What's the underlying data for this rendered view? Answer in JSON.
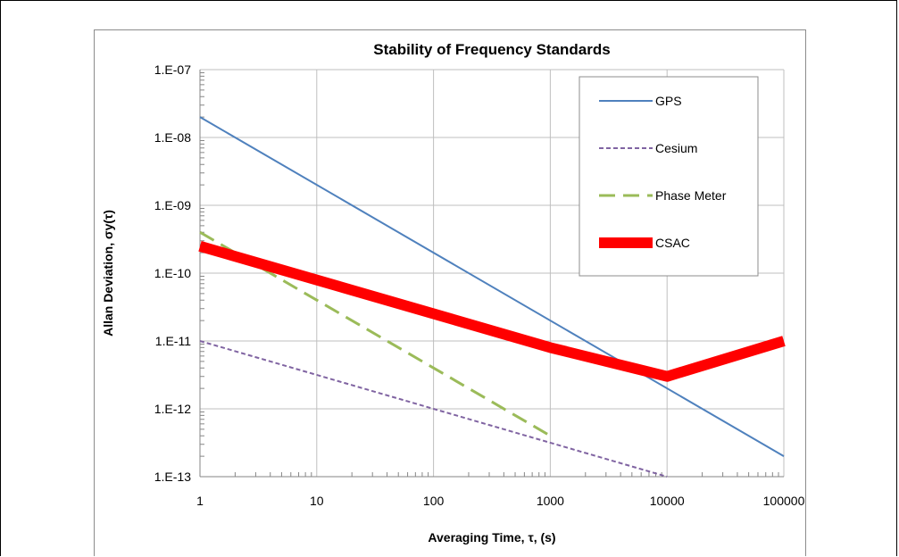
{
  "chart_data": {
    "type": "line",
    "title": "Stability of Frequency Standards",
    "xlabel": "Averaging Time, τ, (s)",
    "ylabel": "Allan Deviation, σy(τ)",
    "xscale": "log",
    "yscale": "log",
    "xlim": [
      1,
      100000
    ],
    "ylim": [
      1e-13,
      1e-07
    ],
    "x_ticks": [
      "1",
      "10",
      "100",
      "1000",
      "10000",
      "100000"
    ],
    "y_ticks": [
      "1.E-13",
      "1.E-12",
      "1.E-11",
      "1.E-10",
      "1.E-09",
      "1.E-08",
      "1.E-07"
    ],
    "grid": true,
    "legend_position": "top-right",
    "series": [
      {
        "name": "GPS",
        "color": "#4f81bd",
        "style": "solid",
        "x": [
          1,
          100000
        ],
        "y": [
          2e-08,
          2e-13
        ]
      },
      {
        "name": "Cesium",
        "color": "#8064a2",
        "style": "dotted",
        "x": [
          1,
          10000
        ],
        "y": [
          1e-11,
          1e-13
        ]
      },
      {
        "name": "Phase Meter",
        "color": "#9bbb59",
        "style": "dashed",
        "x": [
          1,
          1000
        ],
        "y": [
          4e-10,
          4e-13
        ]
      },
      {
        "name": "CSAC",
        "color": "#ff0000",
        "style": "thick",
        "x": [
          1,
          1000,
          10000,
          100000
        ],
        "y": [
          2.5e-10,
          8e-12,
          3e-12,
          1e-11
        ]
      }
    ]
  }
}
